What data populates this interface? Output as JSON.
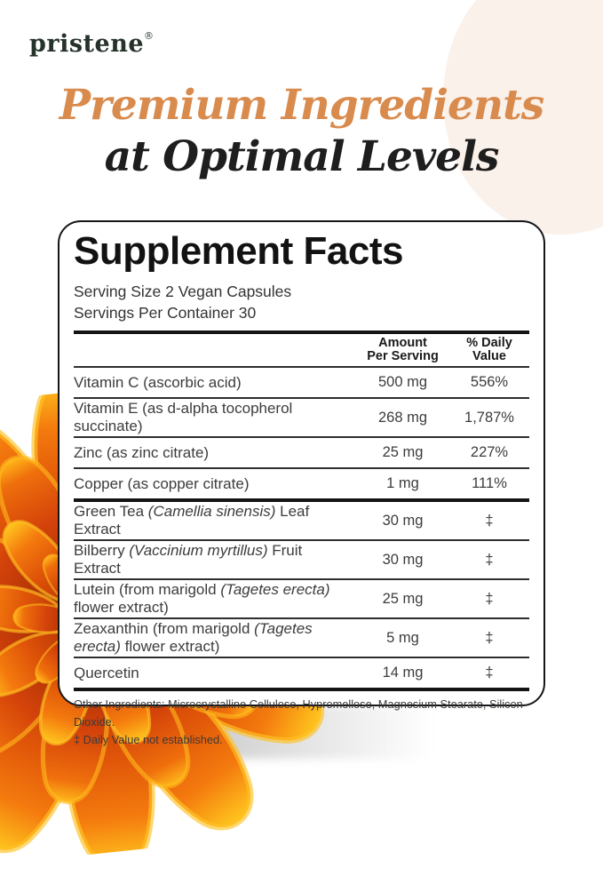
{
  "theme": {
    "accent_orange": "#d98b4e",
    "heading_dark": "#1e1e1e",
    "logo_green": "#25332b",
    "table_text": "#3c3c3c",
    "rule_dark": "#141414",
    "cream_blob": "#faf1eb"
  },
  "graphics": {
    "flower": "orange-marigold-flower",
    "flower_colors": [
      "#b53205",
      "#e05509",
      "#f47b0e",
      "#ffc61e"
    ],
    "floor_shadow_color": "#8c8c8c"
  },
  "logo": {
    "text": "pristene",
    "registered": "®"
  },
  "heading": {
    "line1": "Premium Ingredients",
    "line2": "at Optimal Levels"
  },
  "panel": {
    "title": "Supplement Facts",
    "serving_size": "Serving Size 2 Vegan Capsules",
    "servings_per_container": "Servings Per Container 30",
    "col_amount_line1": "Amount",
    "col_amount_line2": "Per Serving",
    "col_dv_line1": "% Daily",
    "col_dv_line2": "Value",
    "rows": [
      {
        "segments": [
          {
            "text": "Vitamin C (ascorbic acid)",
            "italic": false
          }
        ],
        "amount": "500 mg",
        "dv": "556%",
        "divider_after": "thin"
      },
      {
        "segments": [
          {
            "text": "Vitamin E (as d-alpha tocopherol succinate)",
            "italic": false
          }
        ],
        "amount": "268 mg",
        "dv": "1,787%",
        "divider_after": "thin"
      },
      {
        "segments": [
          {
            "text": "Zinc (as zinc citrate)",
            "italic": false
          }
        ],
        "amount": "25 mg",
        "dv": "227%",
        "divider_after": "thin"
      },
      {
        "segments": [
          {
            "text": "Copper (as copper citrate)",
            "italic": false
          }
        ],
        "amount": "1 mg",
        "dv": "111%",
        "divider_after": "thick"
      },
      {
        "segments": [
          {
            "text": "Green Tea ",
            "italic": false
          },
          {
            "text": "(Camellia sinensis)",
            "italic": true
          },
          {
            "text": " Leaf Extract",
            "italic": false
          }
        ],
        "amount": "30 mg",
        "dv": "‡",
        "divider_after": "thin"
      },
      {
        "segments": [
          {
            "text": "Bilberry ",
            "italic": false
          },
          {
            "text": "(Vaccinium myrtillus)",
            "italic": true
          },
          {
            "text": " Fruit Extract",
            "italic": false
          }
        ],
        "amount": "30 mg",
        "dv": "‡",
        "divider_after": "thin"
      },
      {
        "segments": [
          {
            "text": "Lutein (from marigold ",
            "italic": false
          },
          {
            "text": "(Tagetes erecta)",
            "italic": true
          },
          {
            "text": " flower extract)",
            "italic": false
          }
        ],
        "amount": "25 mg",
        "dv": "‡",
        "divider_after": "thin"
      },
      {
        "segments": [
          {
            "text": "Zeaxanthin (from marigold ",
            "italic": false
          },
          {
            "text": "(Tagetes erecta)",
            "italic": true
          },
          {
            "text": " flower extract)",
            "italic": false
          }
        ],
        "amount": "5 mg",
        "dv": "‡",
        "divider_after": "thin"
      },
      {
        "segments": [
          {
            "text": "Quercetin",
            "italic": false
          }
        ],
        "amount": "14 mg",
        "dv": "‡",
        "divider_after": "thick"
      }
    ],
    "other_ingredients": "Other Ingredients: Microcrystalline Cellulose, Hypromellose, Magnesium Stearate, Silicon Dioxide.",
    "footnote": "‡ Daily Value not established."
  }
}
